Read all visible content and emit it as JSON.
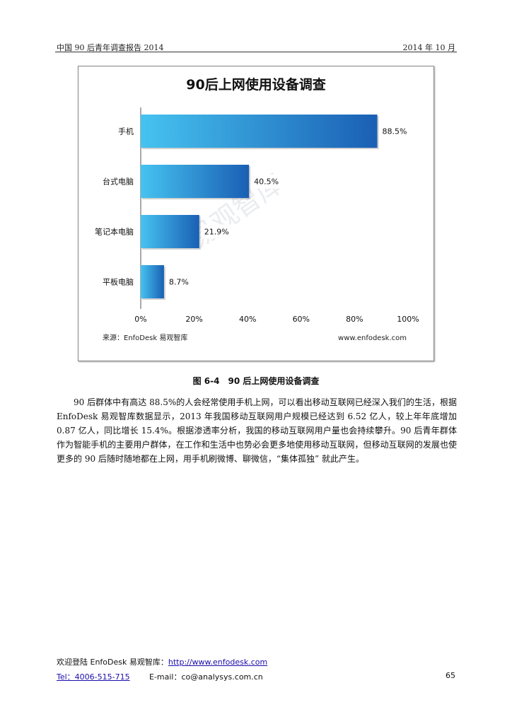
{
  "header": {
    "left": "中国 90 后青年调查报告 2014",
    "right": "2014 年 10 月"
  },
  "chart": {
    "watermark": "易观智库",
    "source": "来源：EnfoDesk 易观智库",
    "website": "www.enfodesk.com"
  },
  "chart_data": {
    "type": "bar",
    "orientation": "horizontal",
    "title": "90后上网使用设备调查",
    "categories": [
      "手机",
      "台式电脑",
      "笔记本电脑",
      "平板电脑"
    ],
    "values": [
      88.5,
      40.5,
      21.9,
      8.7
    ],
    "value_labels": [
      "88.5%",
      "40.5%",
      "21.9%",
      "8.7%"
    ],
    "xlim": [
      0,
      100
    ],
    "x_ticks": [
      "0%",
      "20%",
      "40%",
      "60%",
      "80%",
      "100%"
    ],
    "xlabel": "",
    "ylabel": "",
    "grid": false,
    "colors": {
      "bar_light": "#46c3f0",
      "bar_dark": "#1a5fb4"
    }
  },
  "caption": "图 6-4　90 后上网使用设备调查",
  "paragraph": "90 后群体中有高达 88.5%的人会经常使用手机上网，可以看出移动互联网已经深入我们的生活，根据 EnfoDesk 易观智库数据显示，2013 年我国移动互联网用户规模已经达到 6.52 亿人，较上年年底增加 0.87 亿人，同比增长 15.4%。根据渗透率分析，我国的移动互联网用户量也会持续攀升。90 后青年群体作为智能手机的主要用户群体，在工作和生活中也势必会更多地使用移动互联网，但移动互联网的发展也使更多的 90 后随时随地都在上网，用手机刷微博、聊微信，“集体孤独” 就此产生。",
  "footer": {
    "welcome": "欢迎登陆 EnfoDesk 易观智库：",
    "url": "http://www.enfodesk.com",
    "tel": "Tel：4006-515-715",
    "email_label": "E-mail：",
    "email": "co@analysys.com.cn",
    "page": "65"
  }
}
